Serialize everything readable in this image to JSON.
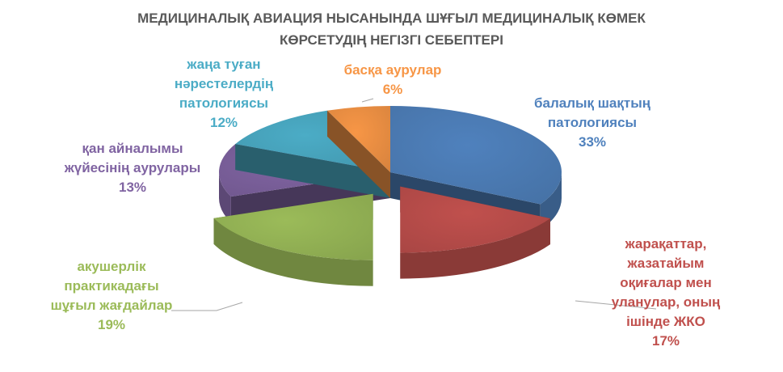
{
  "chart_data": {
    "type": "pie",
    "style": "3d-exploded",
    "title": "МЕДИЦИНАЛЫҚ АВИАЦИЯ НЫСАНЫНДА ШҰҒЫЛ МЕДИЦИНАЛЫҚ КӨМЕК\nКӨРСЕТУДІҢ НЕГІЗГІ СЕБЕПТЕРІ",
    "slices": [
      {
        "label": "балалық шақтың\nпатологиясы",
        "value": 33,
        "display": "33%",
        "color": "#4f81bd"
      },
      {
        "label": "жарақаттар,\nжазатайым\nоқиғалар мен\nуланулар, оның\nішінде ЖКО",
        "value": 17,
        "display": "17%",
        "color": "#c0504d"
      },
      {
        "label": "акушерлік\nпрактикадағы\nшұғыл жағдайлар",
        "value": 19,
        "display": "19%",
        "color": "#9bbb59"
      },
      {
        "label": "қан айналымы\nжүйесінің аурулары",
        "value": 13,
        "display": "13%",
        "color": "#8064a2"
      },
      {
        "label": "жаңа туған\nнәрестелердің\nпатологиясы",
        "value": 12,
        "display": "12%",
        "color": "#4bacc6"
      },
      {
        "label": "басқа аурулар",
        "value": 6,
        "display": "6%",
        "color": "#f79646"
      }
    ]
  }
}
